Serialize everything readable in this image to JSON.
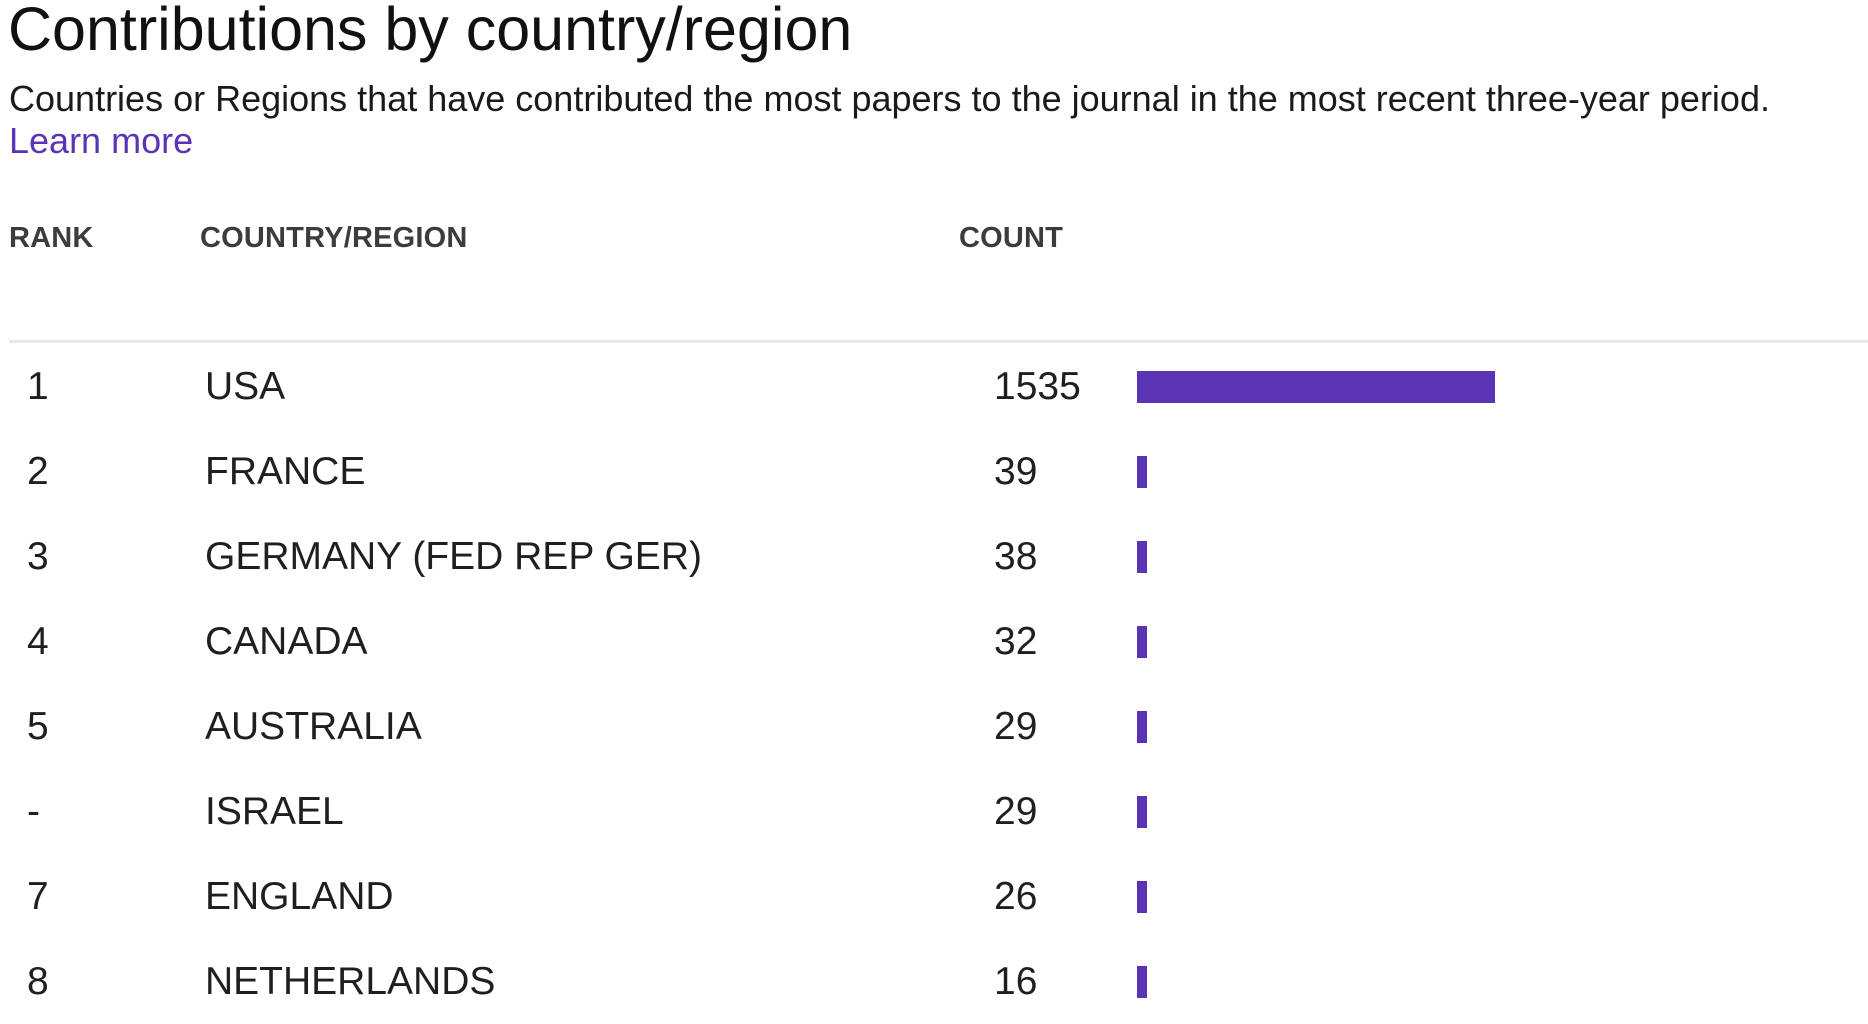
{
  "header": {
    "title": "Contributions by country/region",
    "description": "Countries or Regions that have contributed the most papers to the journal in the most recent three-year period.",
    "learn_more_label": "Learn more"
  },
  "table": {
    "columns": {
      "rank": "RANK",
      "country": "COUNTRY/REGION",
      "count": "COUNT"
    },
    "bar_color": "#5a34b5",
    "rows": [
      {
        "rank": "1",
        "country": "USA",
        "count": 1535
      },
      {
        "rank": "2",
        "country": "FRANCE",
        "count": 39
      },
      {
        "rank": "3",
        "country": "GERMANY (FED REP GER)",
        "count": 38
      },
      {
        "rank": "4",
        "country": "CANADA",
        "count": 32
      },
      {
        "rank": "5",
        "country": "AUSTRALIA",
        "count": 29
      },
      {
        "rank": "-",
        "country": "ISRAEL",
        "count": 29
      },
      {
        "rank": "7",
        "country": "ENGLAND",
        "count": 26
      },
      {
        "rank": "8",
        "country": "NETHERLANDS",
        "count": 16
      }
    ]
  },
  "chart_data": {
    "type": "bar",
    "categories": [
      "USA",
      "FRANCE",
      "GERMANY (FED REP GER)",
      "CANADA",
      "AUSTRALIA",
      "ISRAEL",
      "ENGLAND",
      "NETHERLANDS"
    ],
    "values": [
      1535,
      39,
      38,
      32,
      29,
      29,
      26,
      16
    ],
    "title": "Contributions by country/region",
    "xlabel": "",
    "ylabel": "COUNT"
  }
}
